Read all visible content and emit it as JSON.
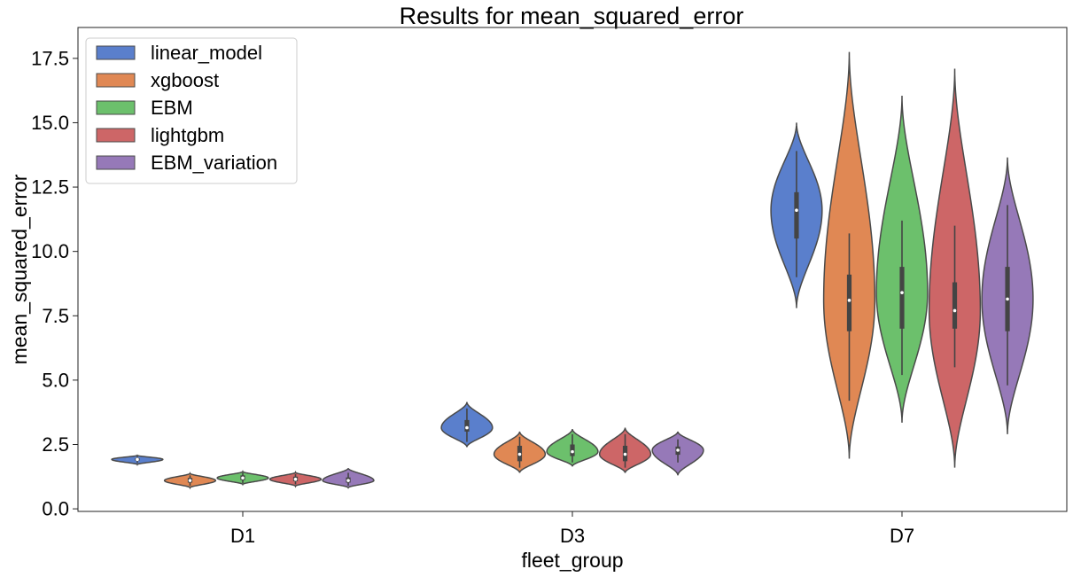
{
  "chart_data": {
    "type": "violin",
    "title": "Results for mean_squared_error",
    "xlabel": "fleet_group",
    "ylabel": "mean_squared_error",
    "categories": [
      "D1",
      "D3",
      "D7"
    ],
    "ylim": [
      -0.1,
      18.7
    ],
    "yticks": [
      0.0,
      2.5,
      5.0,
      7.5,
      10.0,
      12.5,
      15.0,
      17.5
    ],
    "ytick_labels": [
      "0.0",
      "2.5",
      "5.0",
      "7.5",
      "10.0",
      "12.5",
      "15.0",
      "17.5"
    ],
    "grid": false,
    "legend_position": "top-left",
    "series": [
      {
        "name": "linear_model",
        "color": "#5a7fcc",
        "groups": [
          {
            "category": "D1",
            "min": 1.72,
            "max": 2.08,
            "q1": 1.87,
            "median": 1.92,
            "q3": 1.97,
            "whisker_low": 1.78,
            "whisker_high": 2.04
          },
          {
            "category": "D3",
            "min": 2.4,
            "max": 4.15,
            "q1": 3.0,
            "median": 3.15,
            "q3": 3.45,
            "whisker_low": 2.6,
            "whisker_high": 3.9
          },
          {
            "category": "D7",
            "min": 7.8,
            "max": 15.0,
            "q1": 10.5,
            "median": 11.6,
            "q3": 12.3,
            "whisker_low": 9.0,
            "whisker_high": 13.9
          }
        ]
      },
      {
        "name": "xgboost",
        "color": "#e08854",
        "groups": [
          {
            "category": "D1",
            "min": 0.82,
            "max": 1.38,
            "q1": 1.02,
            "median": 1.1,
            "q3": 1.2,
            "whisker_low": 0.9,
            "whisker_high": 1.3
          },
          {
            "category": "D3",
            "min": 1.4,
            "max": 3.0,
            "q1": 1.85,
            "median": 2.12,
            "q3": 2.45,
            "whisker_low": 1.6,
            "whisker_high": 2.8
          },
          {
            "category": "D7",
            "min": 1.95,
            "max": 17.75,
            "q1": 6.9,
            "median": 8.1,
            "q3": 9.1,
            "whisker_low": 4.2,
            "whisker_high": 10.7
          }
        ]
      },
      {
        "name": "EBM",
        "color": "#6cc06c",
        "groups": [
          {
            "category": "D1",
            "min": 0.95,
            "max": 1.45,
            "q1": 1.12,
            "median": 1.2,
            "q3": 1.3,
            "whisker_low": 1.0,
            "whisker_high": 1.4
          },
          {
            "category": "D3",
            "min": 1.65,
            "max": 3.1,
            "q1": 2.05,
            "median": 2.22,
            "q3": 2.5,
            "whisker_low": 1.8,
            "whisker_high": 2.9
          },
          {
            "category": "D7",
            "min": 3.35,
            "max": 16.05,
            "q1": 7.0,
            "median": 8.4,
            "q3": 9.4,
            "whisker_low": 5.2,
            "whisker_high": 11.2
          }
        ]
      },
      {
        "name": "lightgbm",
        "color": "#cd6667",
        "groups": [
          {
            "category": "D1",
            "min": 0.88,
            "max": 1.42,
            "q1": 1.07,
            "median": 1.15,
            "q3": 1.25,
            "whisker_low": 0.95,
            "whisker_high": 1.35
          },
          {
            "category": "D3",
            "min": 1.4,
            "max": 3.15,
            "q1": 1.85,
            "median": 2.12,
            "q3": 2.45,
            "whisker_low": 1.6,
            "whisker_high": 2.9
          },
          {
            "category": "D7",
            "min": 1.6,
            "max": 17.1,
            "q1": 7.0,
            "median": 7.7,
            "q3": 8.8,
            "whisker_low": 5.5,
            "whisker_high": 11.0
          }
        ]
      },
      {
        "name": "EBM_variation",
        "color": "#9679b8",
        "groups": [
          {
            "category": "D1",
            "min": 0.82,
            "max": 1.58,
            "q1": 1.02,
            "median": 1.1,
            "q3": 1.22,
            "whisker_low": 0.9,
            "whisker_high": 1.4
          },
          {
            "category": "D3",
            "min": 1.3,
            "max": 3.0,
            "q1": 2.1,
            "median": 2.28,
            "q3": 2.42,
            "whisker_low": 1.8,
            "whisker_high": 2.7
          },
          {
            "category": "D7",
            "min": 2.9,
            "max": 13.65,
            "q1": 6.9,
            "median": 8.15,
            "q3": 9.4,
            "whisker_low": 4.8,
            "whisker_high": 11.8
          }
        ]
      }
    ]
  }
}
